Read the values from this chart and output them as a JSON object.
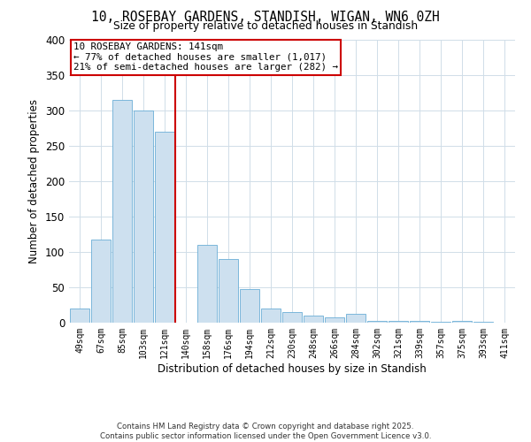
{
  "title1": "10, ROSEBAY GARDENS, STANDISH, WIGAN, WN6 0ZH",
  "title2": "Size of property relative to detached houses in Standish",
  "xlabel": "Distribution of detached houses by size in Standish",
  "ylabel": "Number of detached properties",
  "footer1": "Contains HM Land Registry data © Crown copyright and database right 2025.",
  "footer2": "Contains public sector information licensed under the Open Government Licence v3.0.",
  "bin_labels": [
    "49sqm",
    "67sqm",
    "85sqm",
    "103sqm",
    "121sqm",
    "140sqm",
    "158sqm",
    "176sqm",
    "194sqm",
    "212sqm",
    "230sqm",
    "248sqm",
    "266sqm",
    "284sqm",
    "302sqm",
    "321sqm",
    "339sqm",
    "357sqm",
    "375sqm",
    "393sqm",
    "411sqm"
  ],
  "bar_values": [
    20,
    118,
    315,
    300,
    270,
    0,
    110,
    90,
    47,
    20,
    15,
    10,
    8,
    12,
    3,
    2,
    3,
    1,
    2,
    1,
    0
  ],
  "annotation_text": "10 ROSEBAY GARDENS: 141sqm\n← 77% of detached houses are smaller (1,017)\n21% of semi-detached houses are larger (282) →",
  "bar_color": "#cde0ef",
  "bar_edge_color": "#6aaed6",
  "vline_color": "#cc0000",
  "annotation_box_color": "#cc0000",
  "background_color": "#ffffff",
  "grid_color": "#d0dde8",
  "ylim": [
    0,
    400
  ],
  "yticks": [
    0,
    50,
    100,
    150,
    200,
    250,
    300,
    350,
    400
  ]
}
